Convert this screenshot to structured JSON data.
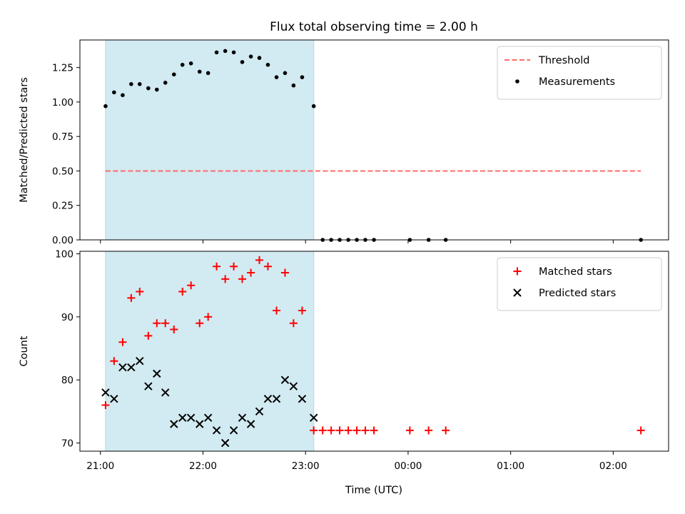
{
  "chart_data": {
    "title": "Flux total observing time = 2.00 h",
    "xlabel": "Time (UTC)",
    "x_ticks": [
      "21:00",
      "22:00",
      "23:00",
      "00:00",
      "01:00",
      "02:00"
    ],
    "x_tick_hours": [
      21,
      22,
      23,
      24,
      25,
      26
    ],
    "xlim_hours": [
      20.8,
      26.54
    ],
    "shaded_interval_hours": [
      21.05,
      23.08
    ],
    "colors": {
      "shade": "#add8e6",
      "threshold": "#ff6b6b",
      "matched": "#ff0000",
      "predicted": "#000000",
      "measurements": "#000000"
    },
    "panels": [
      {
        "type": "scatter",
        "ylabel": "Matched/Predicted stars",
        "ylim": [
          0,
          1.45
        ],
        "y_ticks": [
          "0.00",
          "0.25",
          "0.50",
          "0.75",
          "1.00",
          "1.25"
        ],
        "y_tick_values": [
          0,
          0.25,
          0.5,
          0.75,
          1.0,
          1.25
        ],
        "legend_position": "top-right",
        "threshold": {
          "name": "Threshold",
          "value": 0.5,
          "x_range_hours": [
            21.05,
            26.27
          ]
        },
        "series": [
          {
            "name": "Measurements",
            "marker": "dot",
            "x_hours": [
              21.05,
              21.133,
              21.217,
              21.3,
              21.383,
              21.467,
              21.55,
              21.633,
              21.717,
              21.8,
              21.883,
              21.967,
              22.05,
              22.133,
              22.217,
              22.3,
              22.383,
              22.467,
              22.55,
              22.633,
              22.717,
              22.8,
              22.883,
              22.967,
              23.08,
              23.167,
              23.25,
              23.333,
              23.417,
              23.5,
              23.583,
              23.667,
              24.017,
              24.2,
              24.367,
              26.27
            ],
            "y": [
              0.97,
              1.07,
              1.05,
              1.13,
              1.13,
              1.1,
              1.09,
              1.14,
              1.2,
              1.27,
              1.28,
              1.22,
              1.21,
              1.36,
              1.37,
              1.36,
              1.29,
              1.33,
              1.32,
              1.27,
              1.18,
              1.21,
              1.12,
              1.18,
              0.97,
              0,
              0,
              0,
              0,
              0,
              0,
              0,
              0,
              0,
              0,
              0
            ]
          }
        ]
      },
      {
        "type": "scatter",
        "ylabel": "Count",
        "ylim": [
          68.7,
          100.4
        ],
        "y_ticks": [
          "70",
          "80",
          "90",
          "100"
        ],
        "y_tick_values": [
          70,
          80,
          90,
          100
        ],
        "legend_position": "top-right",
        "series": [
          {
            "name": "Matched stars",
            "marker": "plus",
            "x_hours": [
              21.05,
              21.133,
              21.217,
              21.3,
              21.383,
              21.467,
              21.55,
              21.633,
              21.717,
              21.8,
              21.883,
              21.967,
              22.05,
              22.133,
              22.217,
              22.3,
              22.383,
              22.467,
              22.55,
              22.633,
              22.717,
              22.8,
              22.883,
              22.967,
              23.08,
              23.167,
              23.25,
              23.333,
              23.417,
              23.5,
              23.583,
              23.667,
              24.017,
              24.2,
              24.367,
              26.27
            ],
            "y": [
              76,
              83,
              86,
              93,
              94,
              87,
              89,
              89,
              88,
              94,
              95,
              89,
              90,
              98,
              96,
              98,
              96,
              97,
              99,
              98,
              91,
              97,
              89,
              91,
              72,
              72,
              72,
              72,
              72,
              72,
              72,
              72,
              72,
              72,
              72,
              72
            ]
          },
          {
            "name": "Predicted stars",
            "marker": "x",
            "x_hours": [
              21.05,
              21.133,
              21.217,
              21.3,
              21.383,
              21.467,
              21.55,
              21.633,
              21.717,
              21.8,
              21.883,
              21.967,
              22.05,
              22.133,
              22.217,
              22.3,
              22.383,
              22.467,
              22.55,
              22.633,
              22.717,
              22.8,
              22.883,
              22.967,
              23.08
            ],
            "y": [
              78,
              77,
              82,
              82,
              83,
              79,
              81,
              78,
              73,
              74,
              74,
              73,
              74,
              72,
              70,
              72,
              74,
              73,
              75,
              77,
              77,
              80,
              79,
              77,
              74
            ]
          }
        ]
      }
    ]
  }
}
